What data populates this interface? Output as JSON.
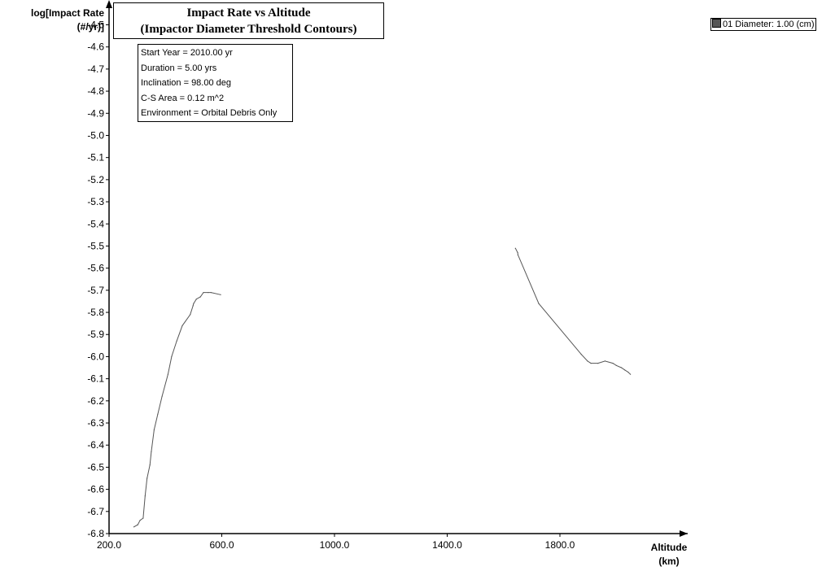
{
  "chart_data": {
    "type": "line",
    "title": "Impact Rate vs Altitude",
    "subtitle": "(Impactor Diameter Threshold Contours)",
    "ylabel": [
      "log[Impact Rate",
      "(#/yr)]"
    ],
    "xlabel": [
      "Altitude",
      "(km)"
    ],
    "ylim": [
      -6.8,
      -4.5
    ],
    "y_ticks": [
      "-4.5",
      "-4.6",
      "-4.7",
      "-4.8",
      "-4.9",
      "-5.0",
      "-5.1",
      "-5.2",
      "-5.3",
      "-5.4",
      "-5.5",
      "-5.6",
      "-5.7",
      "-5.8",
      "-5.9",
      "-6.0",
      "-6.1",
      "-6.2",
      "-6.3",
      "-6.4",
      "-6.5",
      "-6.6",
      "-6.7",
      "-6.8"
    ],
    "xlim": [
      200,
      2000
    ],
    "x_ticks": [
      "200.0",
      "600.0",
      "1000.0",
      "1400.0",
      "1800.0"
    ],
    "grid": false,
    "legend_position": "top-right",
    "series": [
      {
        "name": "01 Diameter: 1.00 (cm)",
        "color": "#555555",
        "x": [
          288,
          302,
          310,
          321,
          328,
          335,
          345,
          350,
          360,
          373,
          388,
          409,
          422,
          440,
          460,
          488,
          498,
          500,
          510,
          524,
          535,
          552,
          562,
          596,
          1642,
          1650,
          1651,
          1725,
          1876,
          1898,
          1910,
          1935,
          1960,
          1988,
          2000,
          2018,
          2030,
          2042,
          2050
        ],
        "y": [
          -6.77,
          -6.76,
          -6.74,
          -6.73,
          -6.63,
          -6.55,
          -6.49,
          -6.43,
          -6.33,
          -6.26,
          -6.18,
          -6.08,
          -6.0,
          -5.93,
          -5.86,
          -5.81,
          -5.77,
          -5.76,
          -5.74,
          -5.73,
          -5.71,
          -5.71,
          -5.71,
          -5.72,
          -5.51,
          -5.53,
          -5.54,
          -5.76,
          -5.99,
          -6.02,
          -6.03,
          -6.03,
          -6.02,
          -6.03,
          -6.04,
          -6.05,
          -6.06,
          -6.07,
          -6.08
        ]
      }
    ]
  },
  "info_box": {
    "start_year": "Start Year = 2010.00 yr",
    "duration": "Duration = 5.00 yrs",
    "inclination": "Inclination = 98.00 deg",
    "cs_area": "C-S Area = 0.12 m^2",
    "environment": "Environment = Orbital Debris Only"
  }
}
